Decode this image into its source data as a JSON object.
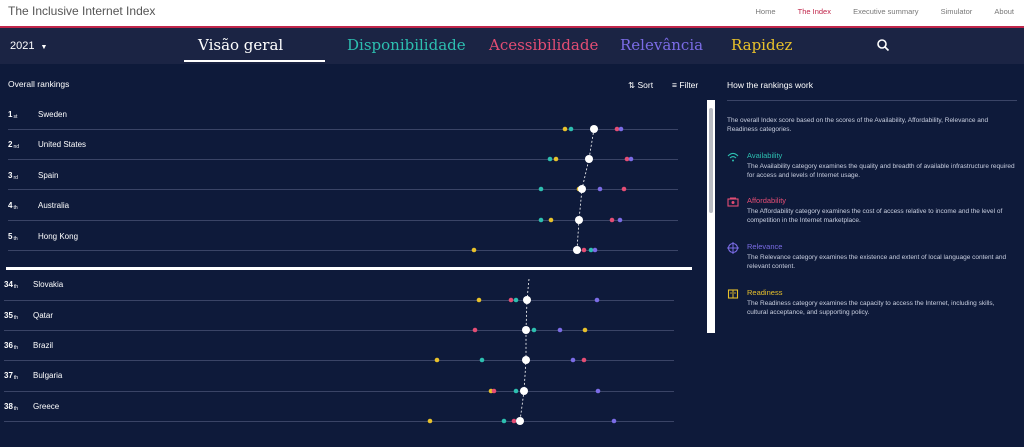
{
  "app": {
    "title": "The Inclusive Internet Index",
    "nav": [
      "Home",
      "The Index",
      "Executive summary",
      "Simulator",
      "About"
    ],
    "active_nav": "The Index"
  },
  "year": "2021",
  "tabs": [
    {
      "label": "Visão geral",
      "color": "#ffffff"
    },
    {
      "label": "Disponibilidade",
      "color": "#2dbfb0"
    },
    {
      "label": "Acessibilidade",
      "color": "#e44d74"
    },
    {
      "label": "Relevância",
      "color": "#7b6ce6"
    },
    {
      "label": "Rapidez",
      "color": "#e8c12b"
    }
  ],
  "rankings": {
    "header": "Overall rankings",
    "sort_label": "Sort",
    "filter_label": "Filter"
  },
  "panel": {
    "title": "How the rankings work",
    "intro": "The overall Index score based on the scores of the Availability, Affordability, Relevance and Readiness categories.",
    "categories": [
      {
        "name": "Availability",
        "icon": "wifi-icon",
        "color": "#2dbfb0",
        "desc": "The Availability category examines the quality and breadth of available infrastructure required for access and levels of Internet usage."
      },
      {
        "name": "Affordability",
        "icon": "money-icon",
        "color": "#e44d74",
        "desc": "The Affordability category examines the cost of access relative to income and the level of competition in the Internet marketplace."
      },
      {
        "name": "Relevance",
        "icon": "globe-icon",
        "color": "#7b6ce6",
        "desc": "The Relevance category examines the existence and extent of local language content and relevant content."
      },
      {
        "name": "Readiness",
        "icon": "book-icon",
        "color": "#e8c12b",
        "desc": "The Readiness category examines the capacity to access the Internet, including skills, cultural acceptance, and supporting policy."
      }
    ]
  },
  "countries": [
    {
      "rank": "1",
      "suffix": "st",
      "name": "Sweden"
    },
    {
      "rank": "2",
      "suffix": "nd",
      "name": "United States"
    },
    {
      "rank": "3",
      "suffix": "rd",
      "name": "Spain"
    },
    {
      "rank": "4",
      "suffix": "th",
      "name": "Australia"
    },
    {
      "rank": "5",
      "suffix": "th",
      "name": "Hong Kong"
    },
    {
      "rank": "34",
      "suffix": "th",
      "name": "Slovakia"
    },
    {
      "rank": "35",
      "suffix": "th",
      "name": "Qatar"
    },
    {
      "rank": "36",
      "suffix": "th",
      "name": "Brazil"
    },
    {
      "rank": "37",
      "suffix": "th",
      "name": "Bulgaria"
    },
    {
      "rank": "38",
      "suffix": "th",
      "name": "Greece"
    }
  ],
  "colors": {
    "background": "#0e1a3a",
    "accent": "#c0254a",
    "availability": "#2dbfb0",
    "affordability": "#e44d74",
    "relevance": "#7b6ce6",
    "readiness": "#e8c12b",
    "overall": "#ffffff"
  }
}
